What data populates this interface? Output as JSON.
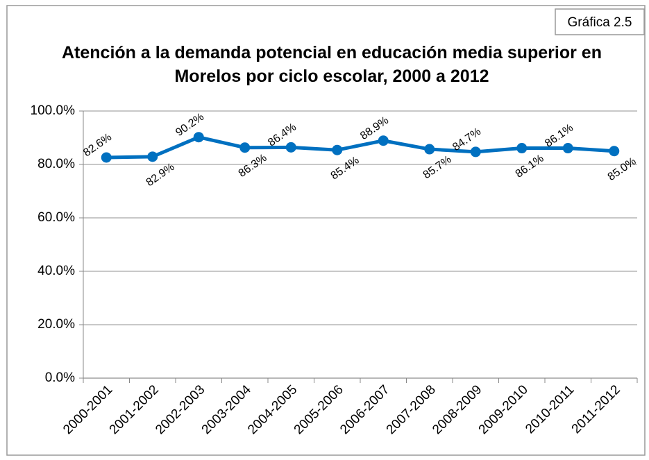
{
  "chart_data": {
    "type": "line",
    "annotation": "Gráfica 2.5",
    "title": [
      "Atención a la demanda potencial en educación media superior en",
      "Morelos por ciclo escolar, 2000 a 2012"
    ],
    "categories": [
      "2000-2001",
      "2001-2002",
      "2002-2003",
      "2003-2004",
      "2004-2005",
      "2005-2006",
      "2006-2007",
      "2007-2008",
      "2008-2009",
      "2009-2010",
      "2010-2011",
      "2011-2012"
    ],
    "values": [
      82.6,
      82.9,
      90.2,
      86.3,
      86.4,
      85.4,
      88.9,
      85.7,
      84.7,
      86.1,
      86.1,
      85.0
    ],
    "value_labels": [
      "82.6%",
      "82.9%",
      "90.2%",
      "86.3%",
      "86.4%",
      "85.4%",
      "88.9%",
      "85.7%",
      "84.7%",
      "86.1%",
      "86.1%",
      "85.0%"
    ],
    "color": "#0070c0",
    "ylim": [
      0,
      100
    ],
    "yticks": [
      {
        "value": 0,
        "label": "0.0%"
      },
      {
        "value": 20,
        "label": "20.0%"
      },
      {
        "value": 40,
        "label": "40.0%"
      },
      {
        "value": 60,
        "label": "60.0%"
      },
      {
        "value": 80,
        "label": "80.0%"
      },
      {
        "value": 100,
        "label": "100.0%"
      }
    ],
    "grid": true
  }
}
